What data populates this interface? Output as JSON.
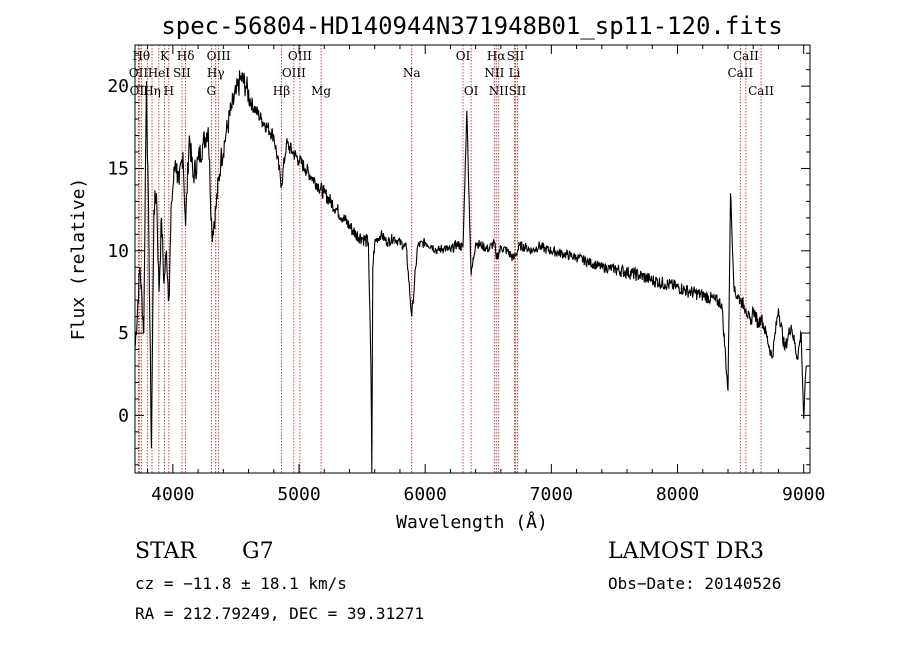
{
  "chart_data": {
    "type": "line",
    "title": "spec-56804-HD140944N371948B01_sp11-120.fits",
    "xlabel": "Wavelength (Å)",
    "ylabel": "Flux (relative)",
    "xlim": [
      3700,
      9050
    ],
    "ylim": [
      -3.5,
      22.5
    ],
    "xticks": [
      "4000",
      "5000",
      "6000",
      "7000",
      "8000",
      "9000"
    ],
    "xtick_values": [
      4000,
      5000,
      6000,
      7000,
      8000,
      9000
    ],
    "yticks": [
      "0",
      "5",
      "10",
      "15",
      "20"
    ],
    "ytick_values": [
      0,
      5,
      10,
      15,
      20
    ],
    "grid": false,
    "line_color": "#000000",
    "marker_color": "#b22222",
    "series": [
      {
        "x": [
          3700,
          3740,
          3770,
          3790,
          3810,
          3830,
          3850,
          3870,
          3890,
          3910,
          3930,
          3950,
          3968,
          3990,
          4020,
          4050,
          4080,
          4101,
          4130,
          4160,
          4200,
          4240,
          4280,
          4310,
          4340,
          4380,
          4420,
          4460,
          4500,
          4540,
          4580,
          4620,
          4660,
          4700,
          4750,
          4800,
          4861,
          4900,
          4950,
          5000,
          5050,
          5100,
          5150,
          5200,
          5250,
          5300,
          5350,
          5400,
          5450,
          5500,
          5550,
          5570,
          5577,
          5585,
          5600,
          5650,
          5700,
          5750,
          5800,
          5850,
          5893,
          5940,
          6000,
          6050,
          6100,
          6150,
          6200,
          6250,
          6300,
          6330,
          6364,
          6400,
          6450,
          6500,
          6550,
          6563,
          6600,
          6650,
          6700,
          6750,
          6800,
          6850,
          6900,
          6950,
          7000,
          7100,
          7200,
          7300,
          7400,
          7500,
          7600,
          7700,
          7800,
          7900,
          8000,
          8100,
          8200,
          8300,
          8350,
          8400,
          8420,
          8450,
          8500,
          8542,
          8580,
          8600,
          8640,
          8662,
          8700,
          8750,
          8800,
          8850,
          8900,
          8950,
          8980,
          9000,
          9020
        ],
        "y": [
          4.0,
          9.0,
          5.0,
          20.3,
          10.5,
          -2.0,
          12.5,
          13.5,
          7.5,
          12.0,
          8.0,
          10.0,
          7.0,
          13.0,
          15.5,
          14.0,
          16.0,
          11.5,
          17.0,
          14.5,
          15.5,
          16.5,
          17.5,
          11.0,
          12.5,
          15.5,
          17.0,
          18.5,
          19.5,
          20.5,
          20.0,
          19.0,
          18.5,
          18.0,
          17.5,
          17.0,
          14.0,
          16.5,
          16.0,
          15.5,
          15.0,
          14.5,
          14.0,
          13.5,
          13.0,
          12.5,
          12.0,
          11.5,
          11.0,
          10.8,
          10.5,
          3.0,
          -3.5,
          9.0,
          10.5,
          11.0,
          10.5,
          10.8,
          10.5,
          10.2,
          6.0,
          10.3,
          10.5,
          10.3,
          10.0,
          10.2,
          10.0,
          10.4,
          10.2,
          18.5,
          8.5,
          10.5,
          10.3,
          10.1,
          10.5,
          9.5,
          10.2,
          10.0,
          9.5,
          10.3,
          10.2,
          10.0,
          10.3,
          10.1,
          10.0,
          9.8,
          9.6,
          9.3,
          9.0,
          8.9,
          8.7,
          8.5,
          8.2,
          8.0,
          7.8,
          7.5,
          7.3,
          7.0,
          6.8,
          1.5,
          13.5,
          7.5,
          7.0,
          6.5,
          5.5,
          6.5,
          5.5,
          6.0,
          5.0,
          3.5,
          6.5,
          4.0,
          5.5,
          3.5,
          5.0,
          -0.2,
          3.0
        ]
      }
    ],
    "line_markers": [
      {
        "x": 3750,
        "label": "Hθ",
        "row": 0
      },
      {
        "x": 3727,
        "label": "OII",
        "row": 1
      },
      {
        "x": 3734,
        "label": "OII",
        "row": 2
      },
      {
        "x": 3798,
        "label": "",
        "row": 0
      },
      {
        "x": 3835,
        "label": "Hη",
        "row": 2
      },
      {
        "x": 3889,
        "label": "HeI",
        "row": 1
      },
      {
        "x": 3934,
        "label": "K",
        "row": 0
      },
      {
        "x": 3968,
        "label": "H",
        "row": 2
      },
      {
        "x": 4072,
        "label": "SII",
        "row": 1
      },
      {
        "x": 4101,
        "label": "Hδ",
        "row": 0
      },
      {
        "x": 4305,
        "label": "G",
        "row": 2
      },
      {
        "x": 4340,
        "label": "Hγ",
        "row": 1
      },
      {
        "x": 4363,
        "label": "OIII",
        "row": 0
      },
      {
        "x": 4861,
        "label": "Hβ",
        "row": 2
      },
      {
        "x": 4959,
        "label": "OIII",
        "row": 1
      },
      {
        "x": 5007,
        "label": "OIII",
        "row": 0
      },
      {
        "x": 5175,
        "label": "Mg",
        "row": 2
      },
      {
        "x": 5893,
        "label": "Na",
        "row": 1
      },
      {
        "x": 6300,
        "label": "OI",
        "row": 0
      },
      {
        "x": 6364,
        "label": "OI",
        "row": 2
      },
      {
        "x": 6548,
        "label": "NII",
        "row": 1
      },
      {
        "x": 6563,
        "label": "Hα",
        "row": 0
      },
      {
        "x": 6583,
        "label": "NII",
        "row": 2
      },
      {
        "x": 6708,
        "label": "Li",
        "row": 1
      },
      {
        "x": 6716,
        "label": "SII",
        "row": 0
      },
      {
        "x": 6731,
        "label": "SII",
        "row": 2
      },
      {
        "x": 8498,
        "label": "CaII",
        "row": 1
      },
      {
        "x": 8542,
        "label": "CaII",
        "row": 0
      },
      {
        "x": 8662,
        "label": "CaII",
        "row": 2
      }
    ]
  },
  "info": {
    "object_class": "STAR",
    "subclass": "G7",
    "survey": "LAMOST DR3",
    "cz": "cz = −11.8 ± 18.1 km/s",
    "obs_date": "Obs−Date: 20140526",
    "coords": "RA = 212.79249, DEC =  39.31271"
  }
}
